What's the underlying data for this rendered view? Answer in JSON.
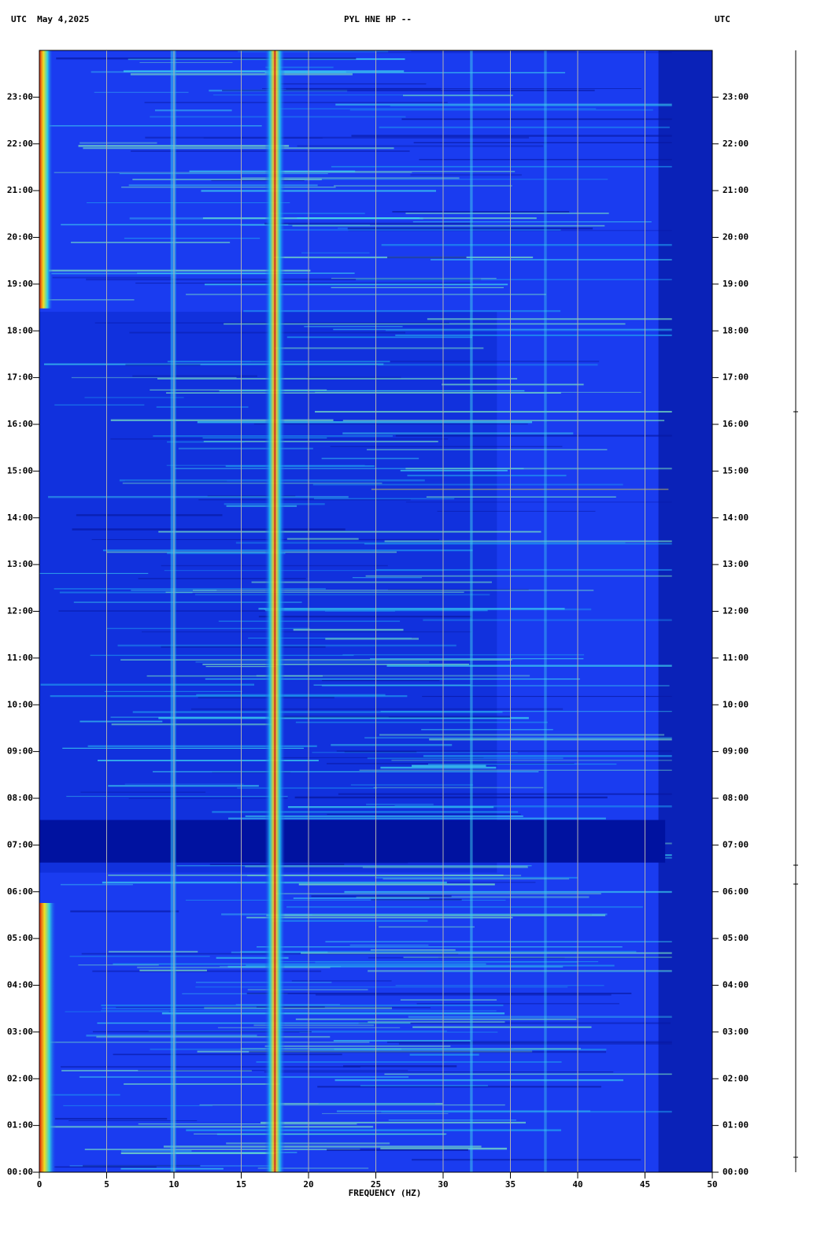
{
  "chart_data": {
    "type": "spectrogram",
    "title": "PYL HNE HP --",
    "left_header": "UTC  May 4,2025",
    "right_header": "UTC",
    "x_label": "FREQUENCY (HZ)",
    "xlim": [
      0,
      50
    ],
    "xticks": [
      0,
      5,
      10,
      15,
      20,
      25,
      30,
      35,
      40,
      45,
      50
    ],
    "ylim": [
      0,
      24
    ],
    "yticks": [
      {
        "value": 0,
        "label": "00:00"
      },
      {
        "value": 1,
        "label": "01:00"
      },
      {
        "value": 2,
        "label": "02:00"
      },
      {
        "value": 3,
        "label": "03:00"
      },
      {
        "value": 4,
        "label": "04:00"
      },
      {
        "value": 5,
        "label": "05:00"
      },
      {
        "value": 6,
        "label": "06:00"
      },
      {
        "value": 7,
        "label": "07:00"
      },
      {
        "value": 8,
        "label": "08:00"
      },
      {
        "value": 9,
        "label": "09:00"
      },
      {
        "value": 10,
        "label": "10:00"
      },
      {
        "value": 11,
        "label": "11:00"
      },
      {
        "value": 12,
        "label": "12:00"
      },
      {
        "value": 13,
        "label": "13:00"
      },
      {
        "value": 14,
        "label": "14:00"
      },
      {
        "value": 15,
        "label": "15:00"
      },
      {
        "value": 16,
        "label": "16:00"
      },
      {
        "value": 17,
        "label": "17:00"
      },
      {
        "value": 18,
        "label": "18:00"
      },
      {
        "value": 19,
        "label": "19:00"
      },
      {
        "value": 20,
        "label": "20:00"
      },
      {
        "value": 21,
        "label": "21:00"
      },
      {
        "value": 22,
        "label": "22:00"
      },
      {
        "value": 23,
        "label": "23:00"
      }
    ],
    "grid": true
  }
}
